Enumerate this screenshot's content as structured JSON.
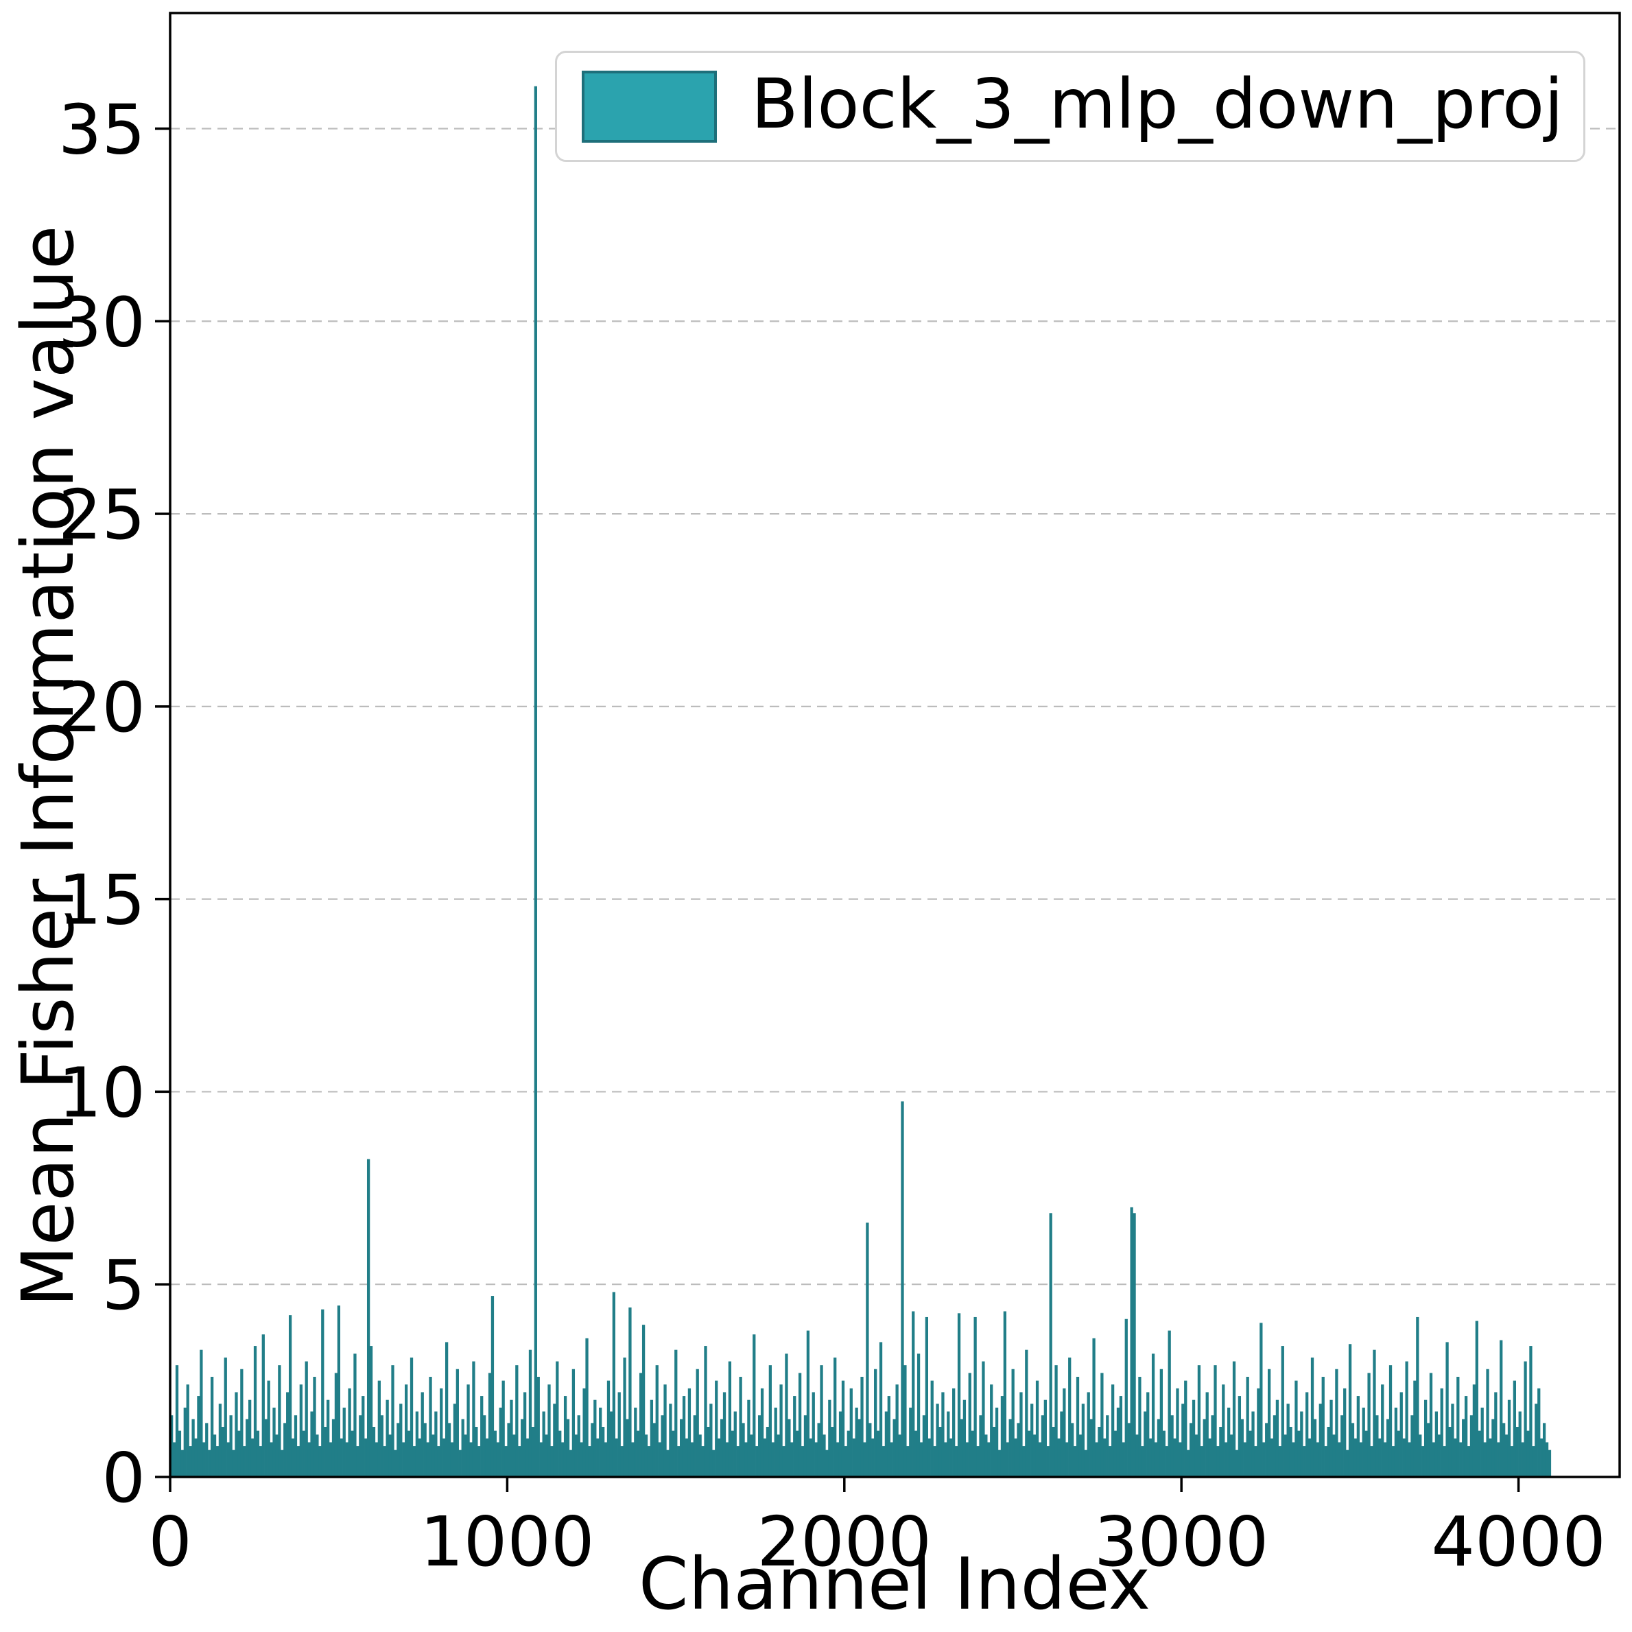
{
  "chart_data": {
    "type": "bar",
    "title": "",
    "xlabel": "Channel Index",
    "ylabel": "Mean Fisher Information value",
    "legend": {
      "label": "Block_3_mlp_down_proj",
      "position": "upper right",
      "swatch_fill": "#2ba3ae",
      "swatch_border": "#1e6f7a"
    },
    "bar_color": "#217e88",
    "grid": {
      "axis": "y",
      "style": "dashed",
      "color": "#bcbcbc"
    },
    "axes_border_color": "#000000",
    "xlim": [
      0,
      4300
    ],
    "ylim": [
      0,
      38
    ],
    "xticks": [
      0,
      1000,
      2000,
      3000,
      4000
    ],
    "xtick_labels": [
      "0",
      "1000",
      "2000",
      "3000",
      "4000"
    ],
    "yticks": [
      0,
      5,
      10,
      15,
      20,
      25,
      30,
      35
    ],
    "ytick_labels": [
      "0",
      "5",
      "10",
      "15",
      "20",
      "25",
      "30",
      "35"
    ],
    "n_channels": 4096,
    "bin_width_channels": 8,
    "notable_peaks": [
      {
        "channel": 1080,
        "value": 36.1
      },
      {
        "channel": 2168,
        "value": 9.8
      },
      {
        "channel": 584,
        "value": 8.3
      },
      {
        "channel": 2848,
        "value": 7.0
      },
      {
        "channel": 2608,
        "value": 6.9
      },
      {
        "channel": 2064,
        "value": 6.6
      }
    ],
    "values": [
      1.6,
      0.9,
      2.9,
      1.2,
      0.7,
      1.8,
      2.4,
      0.8,
      1.5,
      1.0,
      2.1,
      3.3,
      0.9,
      1.4,
      0.7,
      2.6,
      1.1,
      0.8,
      1.9,
      1.3,
      3.1,
      0.9,
      1.6,
      0.7,
      2.2,
      1.2,
      2.8,
      0.8,
      1.5,
      2.0,
      1.0,
      3.4,
      1.2,
      0.8,
      3.7,
      1.5,
      2.5,
      0.9,
      1.8,
      1.1,
      2.9,
      0.7,
      1.4,
      2.2,
      4.2,
      1.0,
      1.6,
      0.8,
      2.4,
      1.2,
      3.0,
      0.9,
      1.7,
      2.6,
      1.1,
      0.8,
      4.35,
      1.3,
      2.0,
      0.9,
      1.5,
      2.7,
      4.45,
      1.0,
      1.8,
      0.9,
      2.3,
      1.2,
      3.2,
      0.8,
      1.6,
      2.1,
      1.0,
      8.25,
      3.4,
      1.3,
      0.9,
      2.5,
      1.6,
      0.8,
      2.0,
      1.1,
      2.9,
      0.7,
      1.4,
      1.9,
      0.9,
      2.4,
      1.2,
      3.1,
      0.8,
      1.7,
      1.0,
      2.2,
      1.4,
      0.9,
      2.6,
      1.1,
      1.7,
      0.8,
      2.3,
      1.0,
      3.5,
      1.4,
      0.9,
      1.9,
      2.8,
      0.7,
      1.5,
      1.1,
      2.4,
      0.9,
      3.0,
      1.3,
      0.8,
      2.1,
      1.6,
      1.0,
      2.7,
      4.7,
      1.2,
      0.9,
      1.8,
      2.5,
      0.8,
      1.4,
      2.0,
      1.1,
      2.9,
      0.8,
      1.5,
      2.2,
      1.0,
      3.3,
      1.3,
      36.1,
      2.6,
      0.9,
      1.7,
      1.1,
      2.4,
      0.8,
      1.9,
      3.0,
      1.2,
      0.9,
      2.1,
      1.5,
      0.7,
      2.8,
      1.1,
      1.6,
      0.9,
      2.3,
      3.6,
      0.8,
      1.4,
      2.0,
      1.0,
      1.8,
      1.3,
      0.9,
      2.5,
      1.7,
      4.8,
      1.0,
      2.2,
      0.8,
      3.1,
      1.5,
      4.4,
      0.9,
      1.8,
      1.2,
      2.7,
      3.95,
      1.1,
      0.8,
      2.0,
      1.4,
      2.9,
      0.9,
      1.6,
      2.4,
      0.7,
      1.9,
      1.2,
      3.3,
      0.8,
      1.5,
      2.1,
      1.0,
      2.3,
      0.9,
      1.6,
      2.8,
      1.1,
      0.8,
      3.4,
      1.3,
      1.9,
      0.7,
      2.5,
      1.0,
      1.5,
      2.2,
      0.9,
      3.0,
      1.2,
      1.7,
      0.8,
      2.6,
      1.4,
      0.9,
      2.0,
      1.1,
      3.7,
      0.8,
      1.6,
      2.3,
      1.0,
      1.3,
      2.9,
      0.9,
      1.8,
      1.1,
      2.4,
      0.8,
      3.2,
      1.5,
      0.9,
      2.1,
      1.2,
      2.7,
      0.8,
      1.6,
      3.8,
      1.0,
      2.2,
      0.9,
      1.4,
      2.9,
      1.1,
      0.7,
      2.0,
      1.3,
      3.1,
      0.9,
      1.7,
      2.5,
      0.8,
      1.2,
      2.3,
      1.0,
      1.8,
      1.5,
      2.6,
      0.9,
      6.6,
      1.4,
      1.0,
      2.8,
      1.2,
      3.5,
      0.8,
      1.7,
      2.1,
      0.9,
      1.5,
      2.4,
      1.1,
      9.75,
      2.9,
      0.8,
      1.8,
      4.3,
      1.2,
      3.2,
      0.9,
      1.6,
      4.15,
      1.0,
      2.5,
      0.8,
      1.9,
      1.3,
      2.2,
      0.9,
      1.7,
      1.0,
      2.3,
      0.8,
      4.25,
      1.5,
      2.0,
      0.9,
      2.7,
      1.2,
      4.15,
      0.8,
      1.6,
      3.0,
      1.1,
      0.9,
      2.4,
      1.3,
      1.8,
      0.7,
      2.1,
      4.3,
      0.9,
      1.5,
      2.8,
      1.0,
      1.4,
      2.2,
      0.8,
      3.3,
      1.2,
      1.9,
      1.1,
      2.5,
      0.9,
      1.6,
      2.0,
      0.8,
      6.85,
      1.3,
      2.9,
      1.0,
      1.7,
      2.3,
      0.9,
      3.1,
      1.4,
      0.8,
      2.6,
      1.1,
      1.9,
      0.7,
      2.2,
      1.5,
      3.6,
      0.9,
      1.3,
      2.7,
      1.0,
      1.6,
      0.8,
      2.4,
      1.2,
      1.8,
      2.1,
      0.9,
      4.1,
      1.4,
      7.0,
      6.85,
      1.1,
      2.6,
      0.8,
      1.7,
      2.2,
      1.0,
      3.2,
      0.9,
      1.5,
      2.8,
      1.2,
      0.8,
      3.8,
      1.6,
      1.0,
      2.3,
      0.9,
      1.9,
      2.5,
      0.7,
      1.4,
      2.0,
      1.1,
      2.9,
      0.8,
      1.5,
      2.2,
      1.0,
      1.6,
      2.9,
      0.8,
      1.3,
      2.4,
      0.9,
      1.8,
      1.1,
      3.0,
      0.7,
      2.1,
      1.5,
      0.9,
      2.6,
      1.2,
      1.7,
      0.8,
      2.3,
      4.0,
      0.9,
      1.4,
      2.8,
      1.0,
      1.6,
      2.0,
      0.8,
      3.4,
      1.1,
      1.9,
      1.3,
      0.9,
      2.5,
      1.2,
      1.7,
      0.8,
      2.2,
      1.0,
      3.1,
      1.5,
      0.9,
      1.9,
      2.6,
      0.8,
      1.3,
      2.0,
      1.1,
      2.8,
      0.9,
      1.6,
      2.3,
      0.7,
      3.45,
      1.4,
      1.0,
      2.1,
      0.9,
      1.8,
      1.2,
      2.7,
      0.8,
      3.3,
      1.6,
      1.0,
      2.4,
      0.9,
      1.5,
      2.9,
      0.8,
      1.8,
      1.2,
      2.2,
      1.0,
      3.0,
      0.9,
      1.6,
      2.5,
      4.15,
      1.1,
      0.8,
      2.0,
      1.4,
      2.7,
      0.9,
      1.7,
      1.1,
      2.3,
      0.8,
      3.5,
      1.3,
      1.9,
      1.0,
      2.6,
      0.9,
      1.5,
      2.1,
      0.8,
      1.6,
      2.4,
      4.05,
      1.2,
      1.8,
      0.9,
      2.8,
      1.0,
      1.5,
      2.2,
      0.9,
      3.55,
      1.4,
      1.1,
      2.0,
      0.8,
      2.5,
      1.3,
      1.7,
      0.9,
      3.0,
      1.2,
      3.4,
      0.8,
      1.9,
      2.3,
      1.0,
      1.4,
      0.9,
      0.7
    ]
  }
}
